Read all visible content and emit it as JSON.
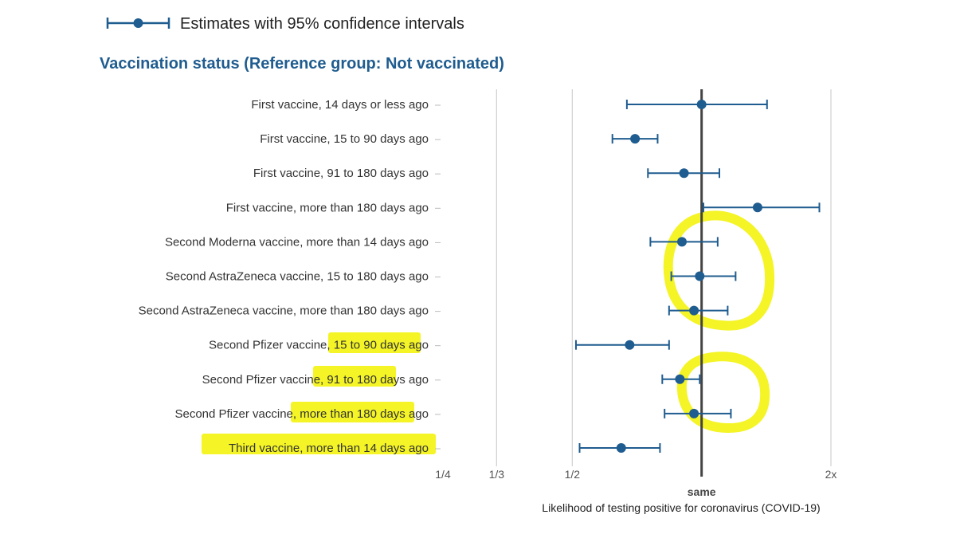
{
  "legend": {
    "label": "Estimates with 95% confidence intervals"
  },
  "colors": {
    "marker": "#1f5c8f",
    "title": "#1f5c8f",
    "grid": "#d0d0d0",
    "reference_line": "#444444",
    "highlight": "#f2f200"
  },
  "chart_data": {
    "type": "scatter",
    "title": "Vaccination status (Reference group: Not vaccinated)",
    "xlabel": "Likelihood of testing positive for coronavirus (COVID-19)",
    "xscale": "log2",
    "xlim": [
      0.25,
      2
    ],
    "xticks": [
      {
        "value": 0.25,
        "label": "1/4"
      },
      {
        "value": 0.3333,
        "label": "1/3"
      },
      {
        "value": 0.5,
        "label": "1/2"
      },
      {
        "value": 2,
        "label": "2x"
      }
    ],
    "reference": {
      "value": 1,
      "label": "same"
    },
    "categories": [
      "First vaccine, 14 days or less ago",
      "First vaccine, 15 to 90 days ago",
      "First vaccine, 91 to 180 days ago",
      "First vaccine, more than 180 days ago",
      "Second Moderna vaccine, more than 14 days ago",
      "Second AstraZeneca vaccine, 15 to 180 days ago",
      "Second AstraZeneca vaccine, more than 180 days ago",
      "Second Pfizer vaccine, 15 to 90 days ago",
      "Second Pfizer vaccine, 91 to 180 days ago",
      "Second Pfizer vaccine, more than 180 days ago",
      "Third vaccine, more than 14 days ago"
    ],
    "series": [
      {
        "estimate": [
          1.0,
          0.7,
          0.91,
          1.35,
          0.9,
          0.99,
          0.96,
          0.68,
          0.89,
          0.96,
          0.65
        ],
        "lower": [
          0.67,
          0.62,
          0.75,
          1.01,
          0.76,
          0.85,
          0.84,
          0.51,
          0.81,
          0.82,
          0.52
        ],
        "upper": [
          1.42,
          0.79,
          1.1,
          1.88,
          1.09,
          1.2,
          1.15,
          0.84,
          0.99,
          1.17,
          0.8
        ]
      }
    ],
    "highlighted_label_parts": [
      {
        "category_index": 7,
        "text": "15 to 90 days ag"
      },
      {
        "category_index": 8,
        "text": "91 to 180 day"
      },
      {
        "category_index": 9,
        "text": "more than 180 days a"
      },
      {
        "category_index": 10,
        "text": "Third vaccine, more than 14 days ago"
      }
    ],
    "grid": true
  }
}
